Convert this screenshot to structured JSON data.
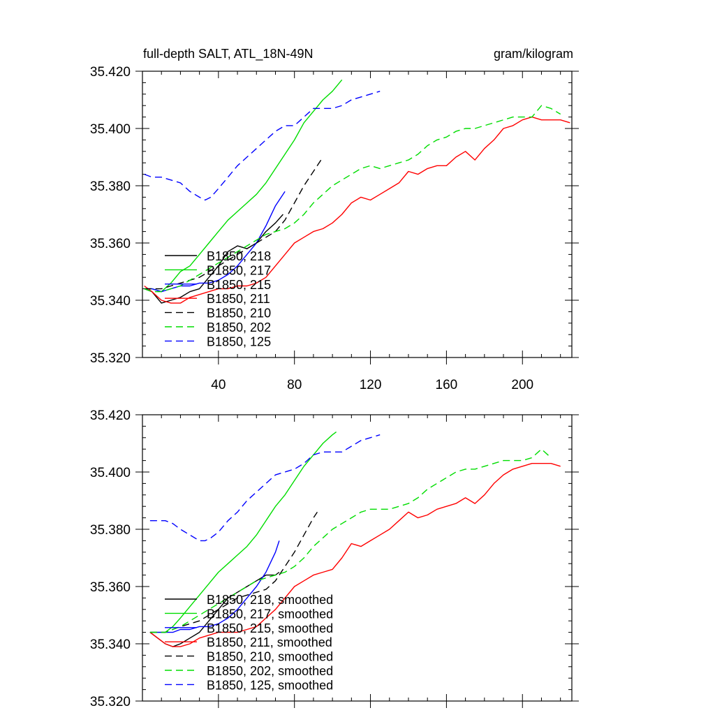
{
  "chart_data": [
    {
      "type": "line",
      "title": "full-depth SALT, ATL_18N-49N",
      "units": "gram/kilogram",
      "xlim": [
        0,
        226
      ],
      "ylim": [
        35.32,
        35.42
      ],
      "x_ticks": [
        40,
        80,
        120,
        160,
        200
      ],
      "y_ticks": [
        35.32,
        35.34,
        35.36,
        35.38,
        35.4,
        35.42
      ],
      "x_tick_labels": [
        "40",
        "80",
        "120",
        "160",
        "200"
      ],
      "y_tick_labels": [
        "35.320",
        "35.340",
        "35.360",
        "35.380",
        "35.400",
        "35.420"
      ],
      "legend_position": "bottom-left",
      "series": [
        {
          "name": "B1850, 218",
          "color": "#000000",
          "dash": "solid",
          "x": [
            1,
            5,
            10,
            15,
            20,
            25,
            30,
            35,
            40,
            45,
            50,
            55,
            60,
            65,
            70,
            74
          ],
          "y": [
            35.344,
            35.343,
            35.339,
            35.34,
            35.341,
            35.343,
            35.344,
            35.348,
            35.352,
            35.357,
            35.359,
            35.358,
            35.36,
            35.364,
            35.367,
            35.37
          ]
        },
        {
          "name": "B1850, 217",
          "color": "#00dd00",
          "dash": "solid",
          "x": [
            1,
            5,
            10,
            15,
            20,
            25,
            30,
            35,
            40,
            45,
            50,
            55,
            60,
            65,
            70,
            75,
            80,
            85,
            90,
            95,
            100,
            105
          ],
          "y": [
            35.344,
            35.344,
            35.343,
            35.346,
            35.35,
            35.352,
            35.356,
            35.36,
            35.364,
            35.368,
            35.371,
            35.374,
            35.377,
            35.381,
            35.386,
            35.391,
            35.396,
            35.402,
            35.406,
            35.41,
            35.413,
            35.417
          ]
        },
        {
          "name": "B1850, 215",
          "color": "#0000ff",
          "dash": "solid",
          "x": [
            1,
            5,
            10,
            15,
            20,
            25,
            30,
            35,
            40,
            45,
            50,
            55,
            60,
            65,
            70,
            75
          ],
          "y": [
            35.344,
            35.344,
            35.343,
            35.344,
            35.345,
            35.345,
            35.346,
            35.346,
            35.347,
            35.349,
            35.352,
            35.356,
            35.36,
            35.366,
            35.373,
            35.378
          ]
        },
        {
          "name": "B1850, 211",
          "color": "#ff0000",
          "dash": "solid",
          "x": [
            1,
            5,
            10,
            15,
            20,
            25,
            30,
            35,
            40,
            45,
            50,
            55,
            60,
            65,
            70,
            75,
            80,
            85,
            90,
            95,
            100,
            105,
            110,
            115,
            120,
            125,
            130,
            135,
            140,
            145,
            150,
            155,
            160,
            165,
            170,
            175,
            180,
            185,
            190,
            195,
            200,
            205,
            210,
            215,
            220,
            225
          ],
          "y": [
            35.345,
            35.343,
            35.34,
            35.339,
            35.339,
            35.341,
            35.342,
            35.343,
            35.344,
            35.344,
            35.345,
            35.345,
            35.346,
            35.348,
            35.352,
            35.356,
            35.36,
            35.362,
            35.364,
            35.365,
            35.367,
            35.37,
            35.374,
            35.376,
            35.375,
            35.377,
            35.379,
            35.381,
            35.385,
            35.384,
            35.386,
            35.387,
            35.387,
            35.39,
            35.392,
            35.389,
            35.393,
            35.396,
            35.4,
            35.401,
            35.403,
            35.404,
            35.403,
            35.403,
            35.403,
            35.402
          ]
        },
        {
          "name": "B1850, 210",
          "color": "#000000",
          "dash": "dashed",
          "x": [
            1,
            5,
            10,
            15,
            20,
            25,
            30,
            35,
            40,
            45,
            50,
            55,
            60,
            65,
            70,
            75,
            80,
            85,
            90,
            94
          ],
          "y": [
            35.344,
            35.344,
            35.344,
            35.345,
            35.346,
            35.347,
            35.348,
            35.35,
            35.352,
            35.354,
            35.356,
            35.358,
            35.36,
            35.362,
            35.364,
            35.368,
            35.374,
            35.38,
            35.385,
            35.389
          ]
        },
        {
          "name": "B1850, 202",
          "color": "#00dd00",
          "dash": "dashed",
          "x": [
            1,
            5,
            10,
            15,
            20,
            25,
            30,
            35,
            40,
            45,
            50,
            55,
            60,
            65,
            70,
            75,
            80,
            85,
            90,
            95,
            100,
            105,
            110,
            115,
            120,
            125,
            130,
            135,
            140,
            145,
            150,
            155,
            160,
            165,
            170,
            175,
            180,
            185,
            190,
            195,
            200,
            205,
            210,
            215,
            220
          ],
          "y": [
            35.344,
            35.343,
            35.343,
            35.344,
            35.345,
            35.347,
            35.349,
            35.351,
            35.353,
            35.355,
            35.357,
            35.359,
            35.361,
            35.363,
            35.364,
            35.365,
            35.367,
            35.37,
            35.374,
            35.377,
            35.38,
            35.382,
            35.384,
            35.386,
            35.387,
            35.386,
            35.387,
            35.388,
            35.389,
            35.391,
            35.394,
            35.396,
            35.397,
            35.399,
            35.4,
            35.4,
            35.401,
            35.402,
            35.403,
            35.404,
            35.404,
            35.404,
            35.408,
            35.407,
            35.405
          ]
        },
        {
          "name": "B1850, 125",
          "color": "#0000ff",
          "dash": "dashed",
          "x": [
            1,
            5,
            10,
            15,
            20,
            25,
            30,
            33,
            36,
            40,
            45,
            50,
            55,
            60,
            65,
            70,
            75,
            80,
            85,
            90,
            95,
            100,
            105,
            110,
            115,
            120,
            125
          ],
          "y": [
            35.384,
            35.383,
            35.383,
            35.382,
            35.381,
            35.378,
            35.376,
            35.375,
            35.376,
            35.379,
            35.383,
            35.387,
            35.39,
            35.393,
            35.396,
            35.399,
            35.401,
            35.401,
            35.404,
            35.407,
            35.407,
            35.407,
            35.408,
            35.41,
            35.411,
            35.412,
            35.413
          ]
        }
      ]
    },
    {
      "type": "line",
      "xlim": [
        0,
        226
      ],
      "ylim": [
        35.32,
        35.42
      ],
      "x_ticks": [
        40,
        80,
        120,
        160,
        200
      ],
      "y_ticks": [
        35.32,
        35.34,
        35.36,
        35.38,
        35.4,
        35.42
      ],
      "y_tick_labels": [
        "35.320",
        "35.340",
        "35.360",
        "35.380",
        "35.400",
        "35.420"
      ],
      "legend_position": "bottom-left",
      "series": [
        {
          "name": "B1850, 218, smoothed",
          "color": "#000000",
          "dash": "solid",
          "x": [
            4,
            8,
            12,
            16,
            20,
            25,
            30,
            35,
            40,
            45,
            50,
            55,
            60,
            65,
            70,
            72
          ],
          "y": [
            35.344,
            35.342,
            35.34,
            35.339,
            35.34,
            35.342,
            35.344,
            35.348,
            35.352,
            35.356,
            35.358,
            35.36,
            35.362,
            35.364,
            35.364,
            35.365
          ]
        },
        {
          "name": "B1850, 217, smoothed",
          "color": "#00dd00",
          "dash": "solid",
          "x": [
            4,
            8,
            12,
            16,
            20,
            25,
            30,
            35,
            40,
            45,
            50,
            55,
            60,
            65,
            70,
            75,
            80,
            85,
            90,
            95,
            100,
            102
          ],
          "y": [
            35.344,
            35.344,
            35.344,
            35.346,
            35.349,
            35.353,
            35.357,
            35.361,
            35.365,
            35.368,
            35.371,
            35.374,
            35.378,
            35.383,
            35.388,
            35.392,
            35.397,
            35.402,
            35.406,
            35.41,
            35.413,
            35.414
          ]
        },
        {
          "name": "B1850, 215, smoothed",
          "color": "#0000ff",
          "dash": "solid",
          "x": [
            4,
            8,
            12,
            16,
            20,
            25,
            30,
            35,
            40,
            45,
            50,
            55,
            60,
            65,
            70,
            72
          ],
          "y": [
            35.344,
            35.344,
            35.344,
            35.344,
            35.345,
            35.345,
            35.346,
            35.346,
            35.347,
            35.349,
            35.352,
            35.356,
            35.36,
            35.365,
            35.372,
            35.376
          ]
        },
        {
          "name": "B1850, 211, smoothed",
          "color": "#ff0000",
          "dash": "solid",
          "x": [
            4,
            8,
            12,
            16,
            20,
            25,
            30,
            35,
            40,
            45,
            50,
            55,
            60,
            65,
            70,
            75,
            80,
            85,
            90,
            95,
            100,
            105,
            110,
            115,
            120,
            125,
            130,
            135,
            140,
            145,
            150,
            155,
            160,
            165,
            170,
            175,
            180,
            185,
            190,
            195,
            200,
            205,
            210,
            215,
            220
          ],
          "y": [
            35.344,
            35.342,
            35.34,
            35.339,
            35.339,
            35.34,
            35.342,
            35.343,
            35.344,
            35.344,
            35.344,
            35.345,
            35.346,
            35.349,
            35.352,
            35.356,
            35.36,
            35.362,
            35.364,
            35.365,
            35.366,
            35.37,
            35.375,
            35.374,
            35.376,
            35.378,
            35.38,
            35.383,
            35.386,
            35.384,
            35.385,
            35.387,
            35.388,
            35.389,
            35.391,
            35.389,
            35.392,
            35.396,
            35.399,
            35.401,
            35.402,
            35.403,
            35.403,
            35.403,
            35.402
          ]
        },
        {
          "name": "B1850, 210, smoothed",
          "color": "#000000",
          "dash": "dashed",
          "x": [
            4,
            8,
            12,
            16,
            20,
            25,
            30,
            35,
            40,
            45,
            50,
            55,
            60,
            65,
            70,
            75,
            80,
            85,
            90,
            92
          ],
          "y": [
            35.344,
            35.344,
            35.344,
            35.345,
            35.346,
            35.347,
            35.348,
            35.35,
            35.352,
            35.354,
            35.356,
            35.357,
            35.358,
            35.359,
            35.362,
            35.367,
            35.372,
            35.378,
            35.384,
            35.386
          ]
        },
        {
          "name": "B1850, 202, smoothed",
          "color": "#00dd00",
          "dash": "dashed",
          "x": [
            4,
            8,
            12,
            16,
            20,
            25,
            30,
            35,
            40,
            45,
            50,
            55,
            60,
            65,
            70,
            75,
            80,
            85,
            90,
            95,
            100,
            105,
            110,
            115,
            120,
            125,
            130,
            135,
            140,
            145,
            150,
            155,
            160,
            165,
            170,
            175,
            180,
            185,
            190,
            195,
            200,
            205,
            210,
            215
          ],
          "y": [
            35.344,
            35.344,
            35.344,
            35.345,
            35.346,
            35.348,
            35.35,
            35.352,
            35.354,
            35.356,
            35.358,
            35.36,
            35.362,
            35.363,
            35.364,
            35.365,
            35.367,
            35.37,
            35.374,
            35.377,
            35.38,
            35.382,
            35.384,
            35.386,
            35.387,
            35.387,
            35.387,
            35.388,
            35.389,
            35.391,
            35.394,
            35.396,
            35.398,
            35.4,
            35.401,
            35.401,
            35.402,
            35.403,
            35.404,
            35.404,
            35.404,
            35.405,
            35.408,
            35.405
          ]
        },
        {
          "name": "B1850, 125, smoothed",
          "color": "#0000ff",
          "dash": "dashed",
          "x": [
            4,
            8,
            12,
            16,
            20,
            25,
            30,
            33,
            36,
            40,
            45,
            50,
            55,
            60,
            65,
            70,
            75,
            80,
            85,
            90,
            95,
            100,
            105,
            110,
            115,
            120,
            125
          ],
          "y": [
            35.383,
            35.383,
            35.383,
            35.382,
            35.38,
            35.378,
            35.376,
            35.376,
            35.377,
            35.379,
            35.383,
            35.386,
            35.39,
            35.393,
            35.396,
            35.399,
            35.4,
            35.401,
            35.403,
            35.406,
            35.407,
            35.407,
            35.407,
            35.409,
            35.411,
            35.412,
            35.413
          ]
        }
      ]
    }
  ]
}
